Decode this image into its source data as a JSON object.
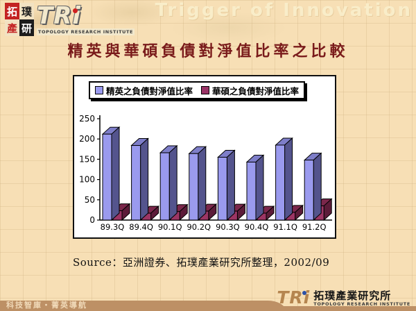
{
  "header": {
    "seal": [
      "拓",
      "璞",
      "產",
      "研"
    ],
    "logo_text": "TRi",
    "logo_subtitle": "TOPOLOGY RESEARCH INSTITUTE",
    "watermark": "Trigger of Innovation"
  },
  "title": "精英與華碩負債對淨值比率之比較",
  "chart_data": {
    "type": "bar",
    "style": "3d-column",
    "categories": [
      "89.3Q",
      "89.4Q",
      "90.1Q",
      "90.2Q",
      "90.3Q",
      "90.4Q",
      "91.1Q",
      "91.2Q"
    ],
    "series": [
      {
        "name": "精英之負債對淨值比率",
        "color": "#9a9aee",
        "values": [
          212,
          184,
          166,
          164,
          155,
          143,
          185,
          148
        ]
      },
      {
        "name": "華碩之負債對淨值比率",
        "color": "#993366",
        "values": [
          23,
          17,
          21,
          22,
          22,
          17,
          19,
          35
        ]
      }
    ],
    "ylim": [
      0,
      250
    ],
    "ytick_step": 50,
    "legend_position": "top",
    "grid": false
  },
  "source_note": "Source：亞洲證券、拓璞產業研究所整理，2002/09",
  "footer": {
    "slogan": "科技智庫・菁英導航",
    "logo_text": "TRi",
    "logo_cn": "拓璞產業研究所",
    "logo_en": "TOPOLOGY RESEARCH INSTITUTE"
  },
  "colors": {
    "background": "#f7dfb5",
    "title": "#7a1b1b",
    "series1_front": "#9a9aee",
    "series1_top": "#7e7ec9",
    "series1_side": "#54548d",
    "series2_front": "#9c3564",
    "series2_top": "#7b274b",
    "series2_side": "#5c1c39",
    "footer_bar": "#bd9065",
    "watermark": "#f9edc9"
  }
}
